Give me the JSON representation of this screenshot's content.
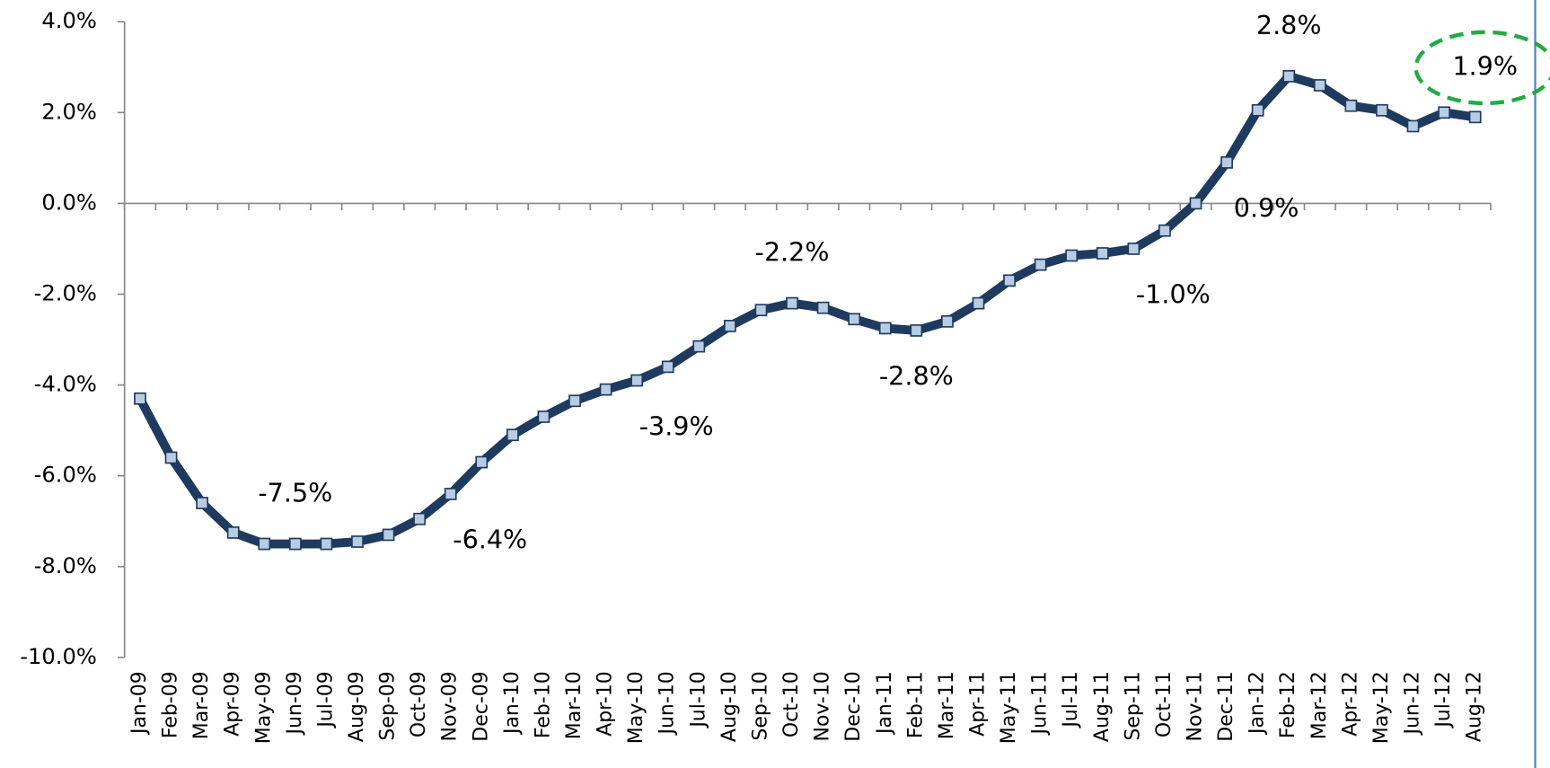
{
  "chart_data": {
    "type": "line",
    "categories": [
      "Jan-09",
      "Feb-09",
      "Mar-09",
      "Apr-09",
      "May-09",
      "Jun-09",
      "Jul-09",
      "Aug-09",
      "Sep-09",
      "Oct-09",
      "Nov-09",
      "Dec-09",
      "Jan-10",
      "Feb-10",
      "Mar-10",
      "Apr-10",
      "May-10",
      "Jun-10",
      "Jul-10",
      "Aug-10",
      "Sep-10",
      "Oct-10",
      "Nov-10",
      "Dec-10",
      "Jan-11",
      "Feb-11",
      "Mar-11",
      "Apr-11",
      "May-11",
      "Jun-11",
      "Jul-11",
      "Aug-11",
      "Sep-11",
      "Oct-11",
      "Nov-11",
      "Dec-11",
      "Jan-12",
      "Feb-12",
      "Mar-12",
      "Apr-12",
      "May-12",
      "Jun-12",
      "Jul-12",
      "Aug-12"
    ],
    "values": [
      -4.3,
      -5.6,
      -6.6,
      -7.25,
      -7.5,
      -7.5,
      -7.5,
      -7.45,
      -7.3,
      -6.95,
      -6.4,
      -5.7,
      -5.1,
      -4.7,
      -4.35,
      -4.1,
      -3.9,
      -3.6,
      -3.15,
      -2.7,
      -2.35,
      -2.2,
      -2.3,
      -2.55,
      -2.75,
      -2.8,
      -2.6,
      -2.2,
      -1.7,
      -1.35,
      -1.15,
      -1.1,
      -1.0,
      -0.6,
      0.0,
      0.9,
      2.05,
      2.8,
      2.6,
      2.15,
      2.05,
      1.7,
      2.0,
      1.9
    ],
    "value_labels": [
      null,
      null,
      null,
      null,
      null,
      "-7.5%",
      null,
      null,
      null,
      null,
      "-6.4%",
      null,
      null,
      null,
      null,
      null,
      "-3.9%",
      null,
      null,
      null,
      null,
      "-2.2%",
      null,
      null,
      null,
      "-2.8%",
      null,
      null,
      null,
      null,
      null,
      null,
      "-1.0%",
      null,
      null,
      "0.9%",
      null,
      "2.8%",
      null,
      null,
      null,
      null,
      null,
      "1.9%"
    ],
    "color": "#1f3a5f",
    "marker_color": "#b8cce4",
    "ylim": [
      -10,
      4
    ],
    "yticks": [
      {
        "value": -10,
        "label": "-10.0%"
      },
      {
        "value": -8,
        "label": "-8.0%"
      },
      {
        "value": -6,
        "label": "-6.0%"
      },
      {
        "value": -4,
        "label": "-4.0%"
      },
      {
        "value": -2,
        "label": "-2.0%"
      },
      {
        "value": 0,
        "label": "0.0%"
      },
      {
        "value": 2,
        "label": "2.0%"
      },
      {
        "value": 4,
        "label": "4.0%"
      }
    ],
    "grid": false
  }
}
